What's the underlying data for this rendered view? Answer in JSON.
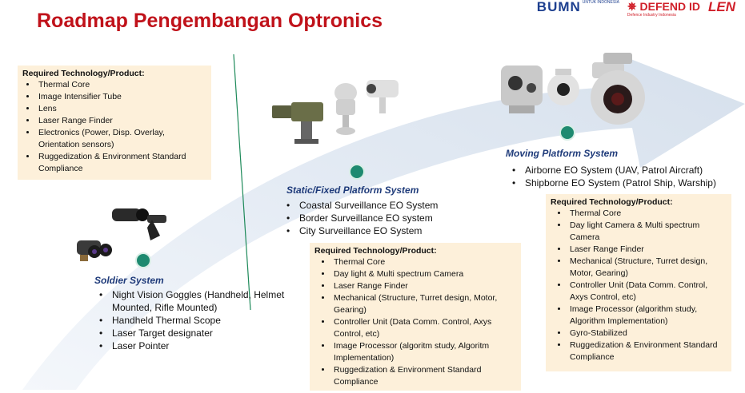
{
  "title": "Roadmap Pengembangan Optronics",
  "logos": {
    "bumn": "BUMN",
    "bumn_tag": "UNTUK INDONESIA",
    "defend": "DEFEND ID",
    "defend_tag": "Defence Industry Indonesia",
    "len": "LEN"
  },
  "colors": {
    "title": "#c0121a",
    "stage_title": "#1f3b7a",
    "box_bg": "#fdf0da",
    "dot": "#1e8a70",
    "arrow": "#dfe7f1"
  },
  "soldier": {
    "title": "Soldier System",
    "items": [
      "Night Vision Goggles (Handheld, Helmet Mounted, Rifle Mounted)",
      "Handheld Thermal Scope",
      "Laser Target designater",
      "Laser Pointer"
    ],
    "req_title": "Required Technology/Product:",
    "req_items": [
      "Thermal Core",
      "Image Intensifier Tube",
      "Lens",
      "Laser Range Finder",
      "Electronics (Power, Disp. Overlay, Orientation sensors)",
      "Ruggedization & Environment Standard Compliance"
    ]
  },
  "static": {
    "title": "Static/Fixed Platform System",
    "items": [
      "Coastal Surveillance EO System",
      "Border Surveillance EO system",
      "City Surveillance EO System"
    ],
    "req_title": "Required Technology/Product:",
    "req_items": [
      "Thermal Core",
      "Day light & Multi spectrum Camera",
      "Laser Range Finder",
      "Mechanical (Structure, Turret design, Motor, Gearing)",
      "Controller Unit (Data Comm. Control, Axys Control, etc)",
      "Image Processor (algoritm study, Algoritm Implementation)",
      "Ruggedization & Environment Standard Compliance"
    ]
  },
  "moving": {
    "title": "Moving Platform System",
    "items": [
      "Airborne EO System (UAV, Patrol Aircraft)",
      "Shipborne EO System (Patrol Ship, Warship)"
    ],
    "req_title": "Required Technology/Product:",
    "req_items": [
      "Thermal Core",
      "Day light Camera & Multi spectrum Camera",
      "Laser Range Finder",
      "Mechanical (Structure, Turret design, Motor, Gearing)",
      "Controller Unit (Data Comm. Control, Axys Control, etc)",
      "Image Processor (algorithm study, Algorithm Implementation)",
      "Gyro-Stabilized",
      "Ruggedization & Environment Standard Compliance"
    ]
  },
  "icons": [
    "night-vision-goggles-icon",
    "turret-camera-icon",
    "gimbal-camera-icon"
  ]
}
